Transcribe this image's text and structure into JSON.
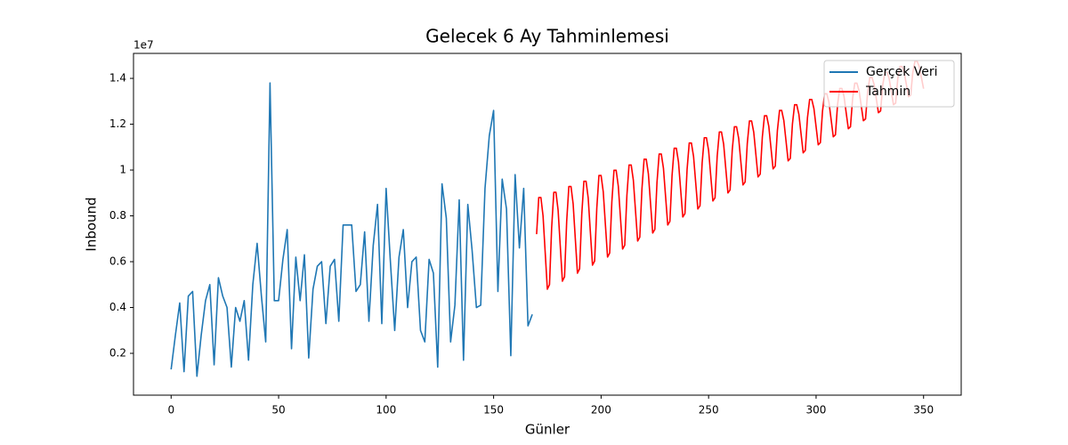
{
  "chart_data": {
    "type": "line",
    "title": "Gelecek 6 Ay Tahminlemesi",
    "x_label": "Günler",
    "y_label": "Inbound",
    "y_offset_label": "1e7",
    "xlim": [
      -17.5,
      367.5
    ],
    "xticks": [
      0,
      50,
      100,
      150,
      200,
      250,
      300,
      350
    ],
    "ylim": [
      0.0175,
      1.509
    ],
    "yticks": [
      0.2,
      0.4,
      0.6,
      0.8,
      1.0,
      1.2,
      1.4
    ],
    "grid": false,
    "legend": "upper right",
    "series": [
      {
        "name": "Gerçek Veri",
        "color": "#1f77b4",
        "x": [
          0,
          2,
          4,
          6,
          8,
          10,
          12,
          14,
          16,
          18,
          20,
          22,
          24,
          26,
          28,
          30,
          32,
          34,
          36,
          38,
          40,
          42,
          44,
          46,
          48,
          50,
          52,
          54,
          56,
          58,
          60,
          62,
          64,
          66,
          68,
          70,
          72,
          74,
          76,
          78,
          80,
          82,
          84,
          86,
          88,
          90,
          92,
          94,
          96,
          98,
          100,
          102,
          104,
          106,
          108,
          110,
          112,
          114,
          116,
          118,
          120,
          122,
          124,
          126,
          128,
          130,
          132,
          134,
          136,
          138,
          140,
          142,
          144,
          146,
          148,
          150,
          152,
          154,
          156,
          158,
          160,
          162,
          164,
          166,
          168
        ],
        "values": [
          0.13,
          0.28,
          0.42,
          0.12,
          0.45,
          0.47,
          0.1,
          0.28,
          0.43,
          0.5,
          0.15,
          0.53,
          0.45,
          0.4,
          0.14,
          0.4,
          0.34,
          0.43,
          0.17,
          0.5,
          0.68,
          0.45,
          0.25,
          1.38,
          0.43,
          0.43,
          0.61,
          0.74,
          0.22,
          0.62,
          0.43,
          0.63,
          0.18,
          0.48,
          0.58,
          0.6,
          0.33,
          0.58,
          0.61,
          0.34,
          0.76,
          0.76,
          0.76,
          0.47,
          0.5,
          0.73,
          0.34,
          0.67,
          0.85,
          0.33,
          0.92,
          0.6,
          0.3,
          0.62,
          0.74,
          0.4,
          0.6,
          0.62,
          0.3,
          0.25,
          0.61,
          0.55,
          0.14,
          0.94,
          0.79,
          0.25,
          0.41,
          0.87,
          0.17,
          0.85,
          0.65,
          0.4,
          0.41,
          0.92,
          1.15,
          1.26,
          0.47,
          0.96,
          0.83,
          0.19,
          0.98,
          0.66,
          0.92,
          0.32,
          0.37
        ]
      },
      {
        "name": "Tahmin",
        "color": "#ff0000",
        "x": [
          170,
          171,
          172,
          173,
          174,
          175,
          176,
          177,
          178,
          179,
          180,
          181,
          182,
          183,
          184,
          185,
          186,
          187,
          188,
          189,
          190,
          191,
          192,
          193,
          194,
          195,
          196,
          197,
          198,
          199,
          200,
          201,
          202,
          203,
          204,
          205,
          206,
          207,
          208,
          209,
          210,
          211,
          212,
          213,
          214,
          215,
          216,
          217,
          218,
          219,
          220,
          221,
          222,
          223,
          224,
          225,
          226,
          227,
          228,
          229,
          230,
          231,
          232,
          233,
          234,
          235,
          236,
          237,
          238,
          239,
          240,
          241,
          242,
          243,
          244,
          245,
          246,
          247,
          248,
          249,
          250,
          251,
          252,
          253,
          254,
          255,
          256,
          257,
          258,
          259,
          260,
          261,
          262,
          263,
          264,
          265,
          266,
          267,
          268,
          269,
          270,
          271,
          272,
          273,
          274,
          275,
          276,
          277,
          278,
          279,
          280,
          281,
          282,
          283,
          284,
          285,
          286,
          287,
          288,
          289,
          290,
          291,
          292,
          293,
          294,
          295,
          296,
          297,
          298,
          299,
          300,
          301,
          302,
          303,
          304,
          305,
          306,
          307,
          308,
          309,
          310,
          311,
          312,
          313,
          314,
          315,
          316,
          317,
          318,
          319,
          320,
          321,
          322,
          323,
          324,
          325,
          326,
          327,
          328,
          329,
          330,
          331,
          332,
          333,
          334,
          335,
          336,
          337,
          338,
          339,
          340,
          341,
          342,
          343,
          344,
          345,
          346,
          347,
          348,
          349,
          350
        ],
        "values": [
          0.72,
          0.88,
          0.88,
          0.8,
          0.64,
          0.48,
          0.5,
          0.748,
          0.903,
          0.903,
          0.825,
          0.67,
          0.515,
          0.534,
          0.777,
          0.928,
          0.928,
          0.852,
          0.701,
          0.55,
          0.569,
          0.805,
          0.951,
          0.951,
          0.878,
          0.731,
          0.585,
          0.603,
          0.834,
          0.976,
          0.976,
          0.905,
          0.762,
          0.62,
          0.638,
          0.861,
          0.999,
          0.999,
          0.93,
          0.793,
          0.655,
          0.672,
          0.889,
          1.022,
          1.022,
          0.956,
          0.823,
          0.69,
          0.707,
          0.918,
          1.047,
          1.047,
          0.983,
          0.854,
          0.725,
          0.741,
          0.946,
          1.07,
          1.07,
          1.008,
          0.884,
          0.76,
          0.776,
          0.975,
          1.095,
          1.095,
          1.035,
          0.915,
          0.795,
          0.81,
          1.003,
          1.118,
          1.118,
          1.06,
          0.945,
          0.83,
          0.844,
          1.031,
          1.141,
          1.141,
          1.086,
          0.975,
          0.865,
          0.879,
          1.06,
          1.166,
          1.166,
          1.113,
          1.006,
          0.9,
          0.913,
          1.087,
          1.189,
          1.189,
          1.138,
          1.037,
          0.935,
          0.948,
          1.116,
          1.214,
          1.214,
          1.165,
          1.068,
          0.97,
          0.982,
          1.144,
          1.237,
          1.237,
          1.191,
          1.098,
          1.005,
          1.017,
          1.172,
          1.26,
          1.26,
          1.216,
          1.128,
          1.04,
          1.051,
          1.201,
          1.285,
          1.285,
          1.243,
          1.159,
          1.075,
          1.086,
          1.229,
          1.308,
          1.308,
          1.268,
          1.189,
          1.11,
          1.12,
          1.258,
          1.333,
          1.333,
          1.295,
          1.22,
          1.145,
          1.154,
          1.286,
          1.356,
          1.356,
          1.321,
          1.25,
          1.18,
          1.189,
          1.313,
          1.379,
          1.379,
          1.346,
          1.281,
          1.215,
          1.223,
          1.342,
          1.404,
          1.404,
          1.373,
          1.312,
          1.25,
          1.258,
          1.37,
          1.427,
          1.427,
          1.399,
          1.342,
          1.285,
          1.292,
          1.399,
          1.452,
          1.452,
          1.426,
          1.373,
          1.32,
          1.327,
          1.427,
          1.475,
          1.475,
          1.451,
          1.403,
          1.355
        ]
      }
    ]
  }
}
